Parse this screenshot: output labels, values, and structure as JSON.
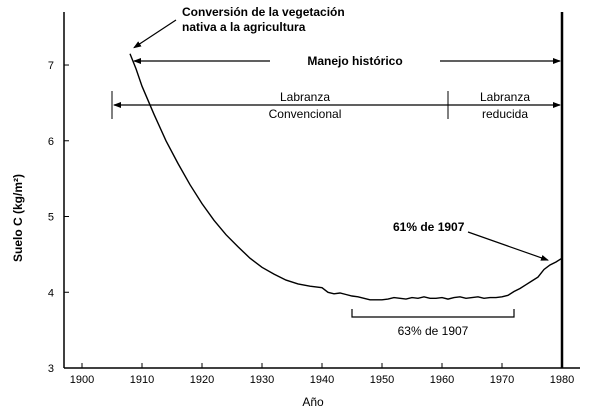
{
  "chart_data": {
    "type": "line",
    "title": "",
    "xlabel": "Año",
    "ylabel": "Suelo C (kg/m²)",
    "xlim": [
      1897,
      1983
    ],
    "ylim": [
      3,
      7.7
    ],
    "xticks": [
      1900,
      1910,
      1920,
      1930,
      1940,
      1950,
      1960,
      1970,
      1980
    ],
    "yticks": [
      3,
      4,
      5,
      6,
      7
    ],
    "grid": false,
    "series": [
      {
        "x": [
          1908,
          1909,
          1910,
          1912,
          1914,
          1916,
          1918,
          1920,
          1922,
          1924,
          1926,
          1928,
          1930,
          1932,
          1934,
          1936,
          1938,
          1940,
          1941,
          1942,
          1943,
          1944,
          1945,
          1946,
          1947,
          1948,
          1949,
          1950,
          1951,
          1952,
          1953,
          1954,
          1955,
          1956,
          1957,
          1958,
          1959,
          1960,
          1961,
          1962,
          1963,
          1964,
          1965,
          1966,
          1967,
          1968,
          1969,
          1970,
          1971,
          1972,
          1973,
          1974,
          1975,
          1976,
          1977,
          1978,
          1979,
          1980
        ],
        "values": [
          7.15,
          6.95,
          6.72,
          6.35,
          6.0,
          5.7,
          5.42,
          5.17,
          4.95,
          4.76,
          4.6,
          4.45,
          4.33,
          4.24,
          4.16,
          4.11,
          4.08,
          4.06,
          4.0,
          3.98,
          3.99,
          3.97,
          3.95,
          3.94,
          3.92,
          3.9,
          3.9,
          3.9,
          3.91,
          3.93,
          3.92,
          3.91,
          3.93,
          3.92,
          3.94,
          3.92,
          3.92,
          3.93,
          3.91,
          3.93,
          3.94,
          3.92,
          3.93,
          3.94,
          3.92,
          3.93,
          3.93,
          3.94,
          3.96,
          4.01,
          4.05,
          4.1,
          4.15,
          4.2,
          4.3,
          4.36,
          4.4,
          4.45
        ]
      }
    ],
    "annotations": {
      "conversion": "Conversión de la vegetación nativa a la agricultura",
      "conversion_line1": "Conversión de la vegetación",
      "conversion_line2": "nativa a la agricultura",
      "manejo": "Manejo histórico",
      "labranza_conv_line1": "Labranza",
      "labranza_conv_line2": "Convencional",
      "labranza_red_line1": "Labranza",
      "labranza_red_line2": "reducida",
      "pct61": "61% de 1907",
      "pct63": "63% de 1907"
    },
    "periods": {
      "manejo": [
        1908,
        1980
      ],
      "labranza_convencional": [
        1905,
        1961
      ],
      "labranza_reducida": [
        1961,
        1980
      ],
      "minimum_bracket": [
        1945,
        1972
      ]
    },
    "colors": {
      "line": "#000000",
      "background": "#ffffff"
    }
  }
}
